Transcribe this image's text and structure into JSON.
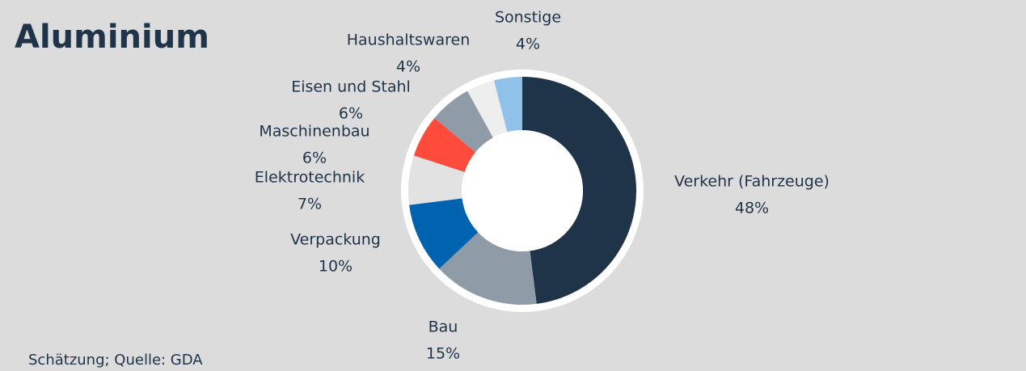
{
  "chart_data": {
    "type": "donut",
    "title": "Aluminium",
    "note": "Schätzung; Quelle: GDA",
    "categories": [
      "Verkehr (Fahrzeuge)",
      "Bau",
      "Verpackung",
      "Elektrotechnik",
      "Maschinenbau",
      "Eisen und Stahl",
      "Haushaltswaren",
      "Sonstige"
    ],
    "values": [
      48,
      15,
      10,
      7,
      6,
      6,
      4,
      4
    ],
    "value_labels": [
      "48%",
      "15%",
      "10%",
      "7%",
      "6%",
      "6%",
      "4%",
      "4%"
    ],
    "colors": [
      "#1f3349",
      "#8f9ba6",
      "#0063b0",
      "#e2e2e2",
      "#ff4b3b",
      "#8f9ba6",
      "#eeeeee",
      "#8fc1ea"
    ]
  }
}
